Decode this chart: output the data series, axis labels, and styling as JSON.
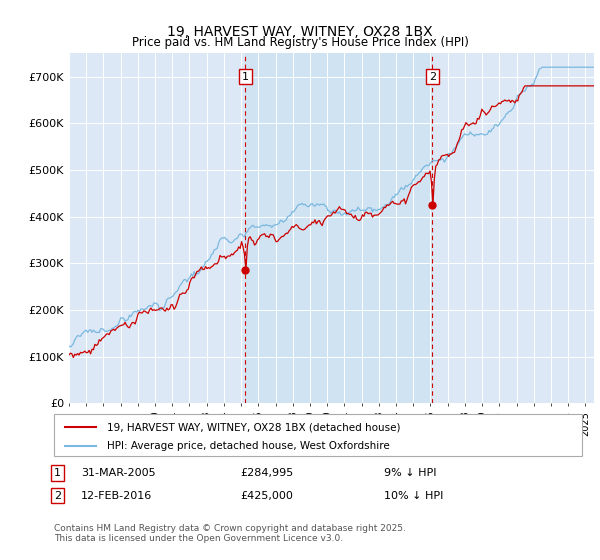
{
  "title": "19, HARVEST WAY, WITNEY, OX28 1BX",
  "subtitle": "Price paid vs. HM Land Registry's House Price Index (HPI)",
  "plot_background": "#dce8f5",
  "ylim": [
    0,
    750000
  ],
  "yticks": [
    0,
    100000,
    200000,
    300000,
    400000,
    500000,
    600000,
    700000
  ],
  "ytick_labels": [
    "£0",
    "£100K",
    "£200K",
    "£300K",
    "£400K",
    "£500K",
    "£600K",
    "£700K"
  ],
  "xlim_start": 1995.0,
  "xlim_end": 2025.5,
  "hpi_color": "#7ab8e0",
  "price_color": "#cc0000",
  "shade_color": "#c5d9ef",
  "marker1_x": 2005.24,
  "marker1_y": 284995,
  "marker2_x": 2016.1,
  "marker2_y": 425000,
  "marker1_label": "1",
  "marker2_label": "2",
  "marker1_date": "31-MAR-2005",
  "marker1_price": "£284,995",
  "marker1_note": "9% ↓ HPI",
  "marker2_date": "12-FEB-2016",
  "marker2_price": "£425,000",
  "marker2_note": "10% ↓ HPI",
  "legend_line1": "19, HARVEST WAY, WITNEY, OX28 1BX (detached house)",
  "legend_line2": "HPI: Average price, detached house, West Oxfordshire",
  "footnote": "Contains HM Land Registry data © Crown copyright and database right 2025.\nThis data is licensed under the Open Government Licence v3.0."
}
